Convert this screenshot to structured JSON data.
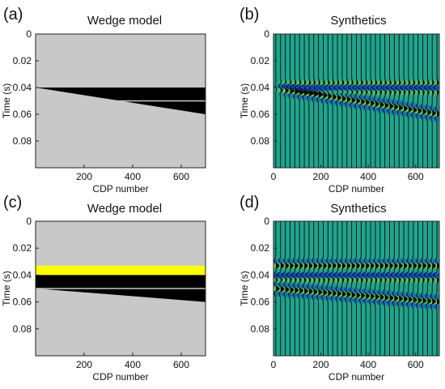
{
  "chart_data": [
    {
      "panel": "(a)",
      "type": "heatmap",
      "title": "Wedge model",
      "xlabel": "CDP number",
      "ylabel": "Time (s)",
      "xlim": [
        0,
        700
      ],
      "ylim": [
        0,
        0.1
      ],
      "y_reversed": true,
      "xticks": [
        200,
        400,
        600
      ],
      "yticks": [
        0,
        0.02,
        0.04,
        0.06,
        0.08
      ],
      "background_color": "#c8c8c8",
      "wedge": {
        "x_start": 0,
        "x_end": 700,
        "top": [
          0.04,
          0.04
        ],
        "base": [
          0.04,
          0.06
        ],
        "color": "#000000"
      },
      "interface_line": {
        "x": [
          0,
          700
        ],
        "y": [
          0.05,
          0.05
        ],
        "color": "#c8c8c8"
      },
      "extra_layer": null
    },
    {
      "panel": "(b)",
      "type": "wiggle",
      "title": "Synthetics",
      "xlabel": "CDP number",
      "ylabel": "Time (s)",
      "xlim": [
        0,
        700
      ],
      "ylim": [
        0,
        0.1
      ],
      "y_reversed": true,
      "xticks": [
        0,
        200,
        400,
        600
      ],
      "yticks": [
        0,
        0.02,
        0.04,
        0.06,
        0.08
      ],
      "background_color": "#1fa58c",
      "trace_spacing": 20,
      "events": [
        {
          "t_start": 0.04,
          "t_end": 0.04,
          "polarity": -1,
          "strength": 1.0
        },
        {
          "t_start": 0.04,
          "t_end": 0.06,
          "polarity": 1,
          "strength": 1.0
        }
      ]
    },
    {
      "panel": "(c)",
      "type": "heatmap",
      "title": "Wedge model",
      "xlabel": "CDP number",
      "ylabel": "Time (s)",
      "xlim": [
        0,
        700
      ],
      "ylim": [
        0,
        0.1
      ],
      "y_reversed": true,
      "xticks": [
        200,
        400,
        600
      ],
      "yticks": [
        0,
        0.02,
        0.04,
        0.06,
        0.08
      ],
      "background_color": "#c8c8c8",
      "wedge": {
        "x_start": 0,
        "x_end": 700,
        "top": [
          0.04,
          0.04
        ],
        "base": [
          0.05,
          0.06
        ],
        "color": "#000000"
      },
      "interface_line": {
        "x": [
          0,
          700
        ],
        "y": [
          0.05,
          0.05
        ],
        "color": "#c8c8c8"
      },
      "extra_layer": {
        "t_top": 0.033,
        "t_base": 0.04,
        "color": "#ffff00"
      }
    },
    {
      "panel": "(d)",
      "type": "wiggle",
      "title": "Synthetics",
      "xlabel": "CDP number",
      "ylabel": "Time (s)",
      "xlim": [
        0,
        700
      ],
      "ylim": [
        0,
        0.1
      ],
      "y_reversed": true,
      "xticks": [
        0,
        200,
        400,
        600
      ],
      "yticks": [
        0,
        0.02,
        0.04,
        0.06,
        0.08
      ],
      "background_color": "#1fa58c",
      "trace_spacing": 20,
      "events": [
        {
          "t_start": 0.033,
          "t_end": 0.033,
          "polarity": 1,
          "strength": 0.9
        },
        {
          "t_start": 0.04,
          "t_end": 0.04,
          "polarity": -1,
          "strength": 1.0
        },
        {
          "t_start": 0.05,
          "t_end": 0.06,
          "polarity": 1,
          "strength": 1.0
        }
      ]
    }
  ]
}
